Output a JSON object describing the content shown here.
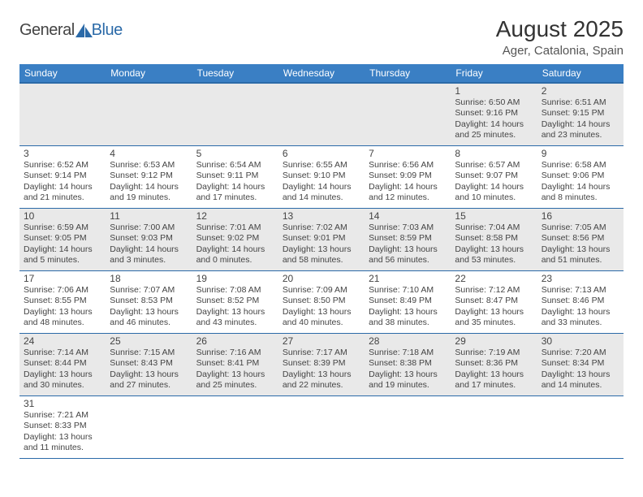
{
  "brand": {
    "text1": "General",
    "text2": "Blue",
    "sail_color": "#2b6aa8",
    "text1_color": "#444444",
    "text2_color": "#2b6aa8"
  },
  "title": {
    "month_year": "August 2025",
    "location": "Ager, Catalonia, Spain"
  },
  "colors": {
    "header_bg": "#3a7fc4",
    "header_border": "#2b6aa8",
    "row_alt_bg": "#e9e9e9",
    "row_bg": "#ffffff",
    "cell_border": "#2b6aa8",
    "text": "#444444"
  },
  "day_headers": [
    "Sunday",
    "Monday",
    "Tuesday",
    "Wednesday",
    "Thursday",
    "Friday",
    "Saturday"
  ],
  "weeks": [
    [
      null,
      null,
      null,
      null,
      null,
      {
        "n": "1",
        "sunrise": "Sunrise: 6:50 AM",
        "sunset": "Sunset: 9:16 PM",
        "dl1": "Daylight: 14 hours",
        "dl2": "and 25 minutes."
      },
      {
        "n": "2",
        "sunrise": "Sunrise: 6:51 AM",
        "sunset": "Sunset: 9:15 PM",
        "dl1": "Daylight: 14 hours",
        "dl2": "and 23 minutes."
      }
    ],
    [
      {
        "n": "3",
        "sunrise": "Sunrise: 6:52 AM",
        "sunset": "Sunset: 9:14 PM",
        "dl1": "Daylight: 14 hours",
        "dl2": "and 21 minutes."
      },
      {
        "n": "4",
        "sunrise": "Sunrise: 6:53 AM",
        "sunset": "Sunset: 9:12 PM",
        "dl1": "Daylight: 14 hours",
        "dl2": "and 19 minutes."
      },
      {
        "n": "5",
        "sunrise": "Sunrise: 6:54 AM",
        "sunset": "Sunset: 9:11 PM",
        "dl1": "Daylight: 14 hours",
        "dl2": "and 17 minutes."
      },
      {
        "n": "6",
        "sunrise": "Sunrise: 6:55 AM",
        "sunset": "Sunset: 9:10 PM",
        "dl1": "Daylight: 14 hours",
        "dl2": "and 14 minutes."
      },
      {
        "n": "7",
        "sunrise": "Sunrise: 6:56 AM",
        "sunset": "Sunset: 9:09 PM",
        "dl1": "Daylight: 14 hours",
        "dl2": "and 12 minutes."
      },
      {
        "n": "8",
        "sunrise": "Sunrise: 6:57 AM",
        "sunset": "Sunset: 9:07 PM",
        "dl1": "Daylight: 14 hours",
        "dl2": "and 10 minutes."
      },
      {
        "n": "9",
        "sunrise": "Sunrise: 6:58 AM",
        "sunset": "Sunset: 9:06 PM",
        "dl1": "Daylight: 14 hours",
        "dl2": "and 8 minutes."
      }
    ],
    [
      {
        "n": "10",
        "sunrise": "Sunrise: 6:59 AM",
        "sunset": "Sunset: 9:05 PM",
        "dl1": "Daylight: 14 hours",
        "dl2": "and 5 minutes."
      },
      {
        "n": "11",
        "sunrise": "Sunrise: 7:00 AM",
        "sunset": "Sunset: 9:03 PM",
        "dl1": "Daylight: 14 hours",
        "dl2": "and 3 minutes."
      },
      {
        "n": "12",
        "sunrise": "Sunrise: 7:01 AM",
        "sunset": "Sunset: 9:02 PM",
        "dl1": "Daylight: 14 hours",
        "dl2": "and 0 minutes."
      },
      {
        "n": "13",
        "sunrise": "Sunrise: 7:02 AM",
        "sunset": "Sunset: 9:01 PM",
        "dl1": "Daylight: 13 hours",
        "dl2": "and 58 minutes."
      },
      {
        "n": "14",
        "sunrise": "Sunrise: 7:03 AM",
        "sunset": "Sunset: 8:59 PM",
        "dl1": "Daylight: 13 hours",
        "dl2": "and 56 minutes."
      },
      {
        "n": "15",
        "sunrise": "Sunrise: 7:04 AM",
        "sunset": "Sunset: 8:58 PM",
        "dl1": "Daylight: 13 hours",
        "dl2": "and 53 minutes."
      },
      {
        "n": "16",
        "sunrise": "Sunrise: 7:05 AM",
        "sunset": "Sunset: 8:56 PM",
        "dl1": "Daylight: 13 hours",
        "dl2": "and 51 minutes."
      }
    ],
    [
      {
        "n": "17",
        "sunrise": "Sunrise: 7:06 AM",
        "sunset": "Sunset: 8:55 PM",
        "dl1": "Daylight: 13 hours",
        "dl2": "and 48 minutes."
      },
      {
        "n": "18",
        "sunrise": "Sunrise: 7:07 AM",
        "sunset": "Sunset: 8:53 PM",
        "dl1": "Daylight: 13 hours",
        "dl2": "and 46 minutes."
      },
      {
        "n": "19",
        "sunrise": "Sunrise: 7:08 AM",
        "sunset": "Sunset: 8:52 PM",
        "dl1": "Daylight: 13 hours",
        "dl2": "and 43 minutes."
      },
      {
        "n": "20",
        "sunrise": "Sunrise: 7:09 AM",
        "sunset": "Sunset: 8:50 PM",
        "dl1": "Daylight: 13 hours",
        "dl2": "and 40 minutes."
      },
      {
        "n": "21",
        "sunrise": "Sunrise: 7:10 AM",
        "sunset": "Sunset: 8:49 PM",
        "dl1": "Daylight: 13 hours",
        "dl2": "and 38 minutes."
      },
      {
        "n": "22",
        "sunrise": "Sunrise: 7:12 AM",
        "sunset": "Sunset: 8:47 PM",
        "dl1": "Daylight: 13 hours",
        "dl2": "and 35 minutes."
      },
      {
        "n": "23",
        "sunrise": "Sunrise: 7:13 AM",
        "sunset": "Sunset: 8:46 PM",
        "dl1": "Daylight: 13 hours",
        "dl2": "and 33 minutes."
      }
    ],
    [
      {
        "n": "24",
        "sunrise": "Sunrise: 7:14 AM",
        "sunset": "Sunset: 8:44 PM",
        "dl1": "Daylight: 13 hours",
        "dl2": "and 30 minutes."
      },
      {
        "n": "25",
        "sunrise": "Sunrise: 7:15 AM",
        "sunset": "Sunset: 8:43 PM",
        "dl1": "Daylight: 13 hours",
        "dl2": "and 27 minutes."
      },
      {
        "n": "26",
        "sunrise": "Sunrise: 7:16 AM",
        "sunset": "Sunset: 8:41 PM",
        "dl1": "Daylight: 13 hours",
        "dl2": "and 25 minutes."
      },
      {
        "n": "27",
        "sunrise": "Sunrise: 7:17 AM",
        "sunset": "Sunset: 8:39 PM",
        "dl1": "Daylight: 13 hours",
        "dl2": "and 22 minutes."
      },
      {
        "n": "28",
        "sunrise": "Sunrise: 7:18 AM",
        "sunset": "Sunset: 8:38 PM",
        "dl1": "Daylight: 13 hours",
        "dl2": "and 19 minutes."
      },
      {
        "n": "29",
        "sunrise": "Sunrise: 7:19 AM",
        "sunset": "Sunset: 8:36 PM",
        "dl1": "Daylight: 13 hours",
        "dl2": "and 17 minutes."
      },
      {
        "n": "30",
        "sunrise": "Sunrise: 7:20 AM",
        "sunset": "Sunset: 8:34 PM",
        "dl1": "Daylight: 13 hours",
        "dl2": "and 14 minutes."
      }
    ],
    [
      {
        "n": "31",
        "sunrise": "Sunrise: 7:21 AM",
        "sunset": "Sunset: 8:33 PM",
        "dl1": "Daylight: 13 hours",
        "dl2": "and 11 minutes."
      },
      null,
      null,
      null,
      null,
      null,
      null
    ]
  ]
}
